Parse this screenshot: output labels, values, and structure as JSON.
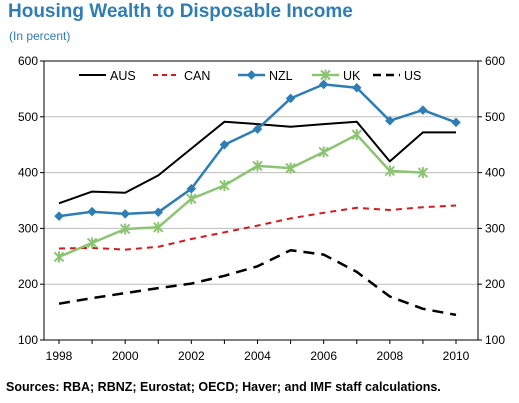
{
  "title": "Housing Wealth to Disposable Income",
  "subtitle": "(In percent)",
  "source": "Sources: RBA; RBNZ; Eurostat; OECD; Haver; and IMF staff calculations.",
  "chart_data": {
    "type": "line",
    "title": "Housing Wealth to Disposable Income",
    "ylabel": "(In percent)",
    "xlim": [
      1998,
      2010
    ],
    "ylim": [
      100,
      600
    ],
    "x_ticks": [
      "1998",
      "2000",
      "2002",
      "2004",
      "2006",
      "2008",
      "2010"
    ],
    "y_ticks": [
      "100",
      "200",
      "300",
      "400",
      "500",
      "600"
    ],
    "legend_position": "top",
    "x": [
      1998,
      1999,
      2000,
      2001,
      2002,
      2003,
      2004,
      2005,
      2006,
      2007,
      2008,
      2009,
      2010
    ],
    "series": [
      {
        "name": "AUS",
        "color": "#000000",
        "style": "solid",
        "marker": "none",
        "values": [
          345,
          366,
          364,
          395,
          443,
          491,
          487,
          482,
          487,
          491,
          420,
          472,
          472
        ]
      },
      {
        "name": "CAN",
        "color": "#d7191c",
        "style": "dash",
        "marker": "none",
        "values": [
          264,
          265,
          262,
          267,
          281,
          293,
          305,
          318,
          328,
          337,
          333,
          338,
          341
        ]
      },
      {
        "name": "NZL",
        "color": "#2e7eb5",
        "style": "solid",
        "marker": "diamond",
        "values": [
          322,
          330,
          326,
          329,
          371,
          450,
          478,
          533,
          558,
          552,
          493,
          512,
          490
        ]
      },
      {
        "name": "UK",
        "color": "#8cc572",
        "style": "solid",
        "marker": "star",
        "values": [
          249,
          274,
          299,
          302,
          353,
          377,
          412,
          408,
          437,
          468,
          403,
          400,
          null
        ]
      },
      {
        "name": "US",
        "color": "#000000",
        "style": "longdash",
        "marker": "none",
        "values": [
          165,
          175,
          184,
          193,
          201,
          215,
          232,
          261,
          253,
          222,
          178,
          156,
          145
        ]
      }
    ]
  }
}
